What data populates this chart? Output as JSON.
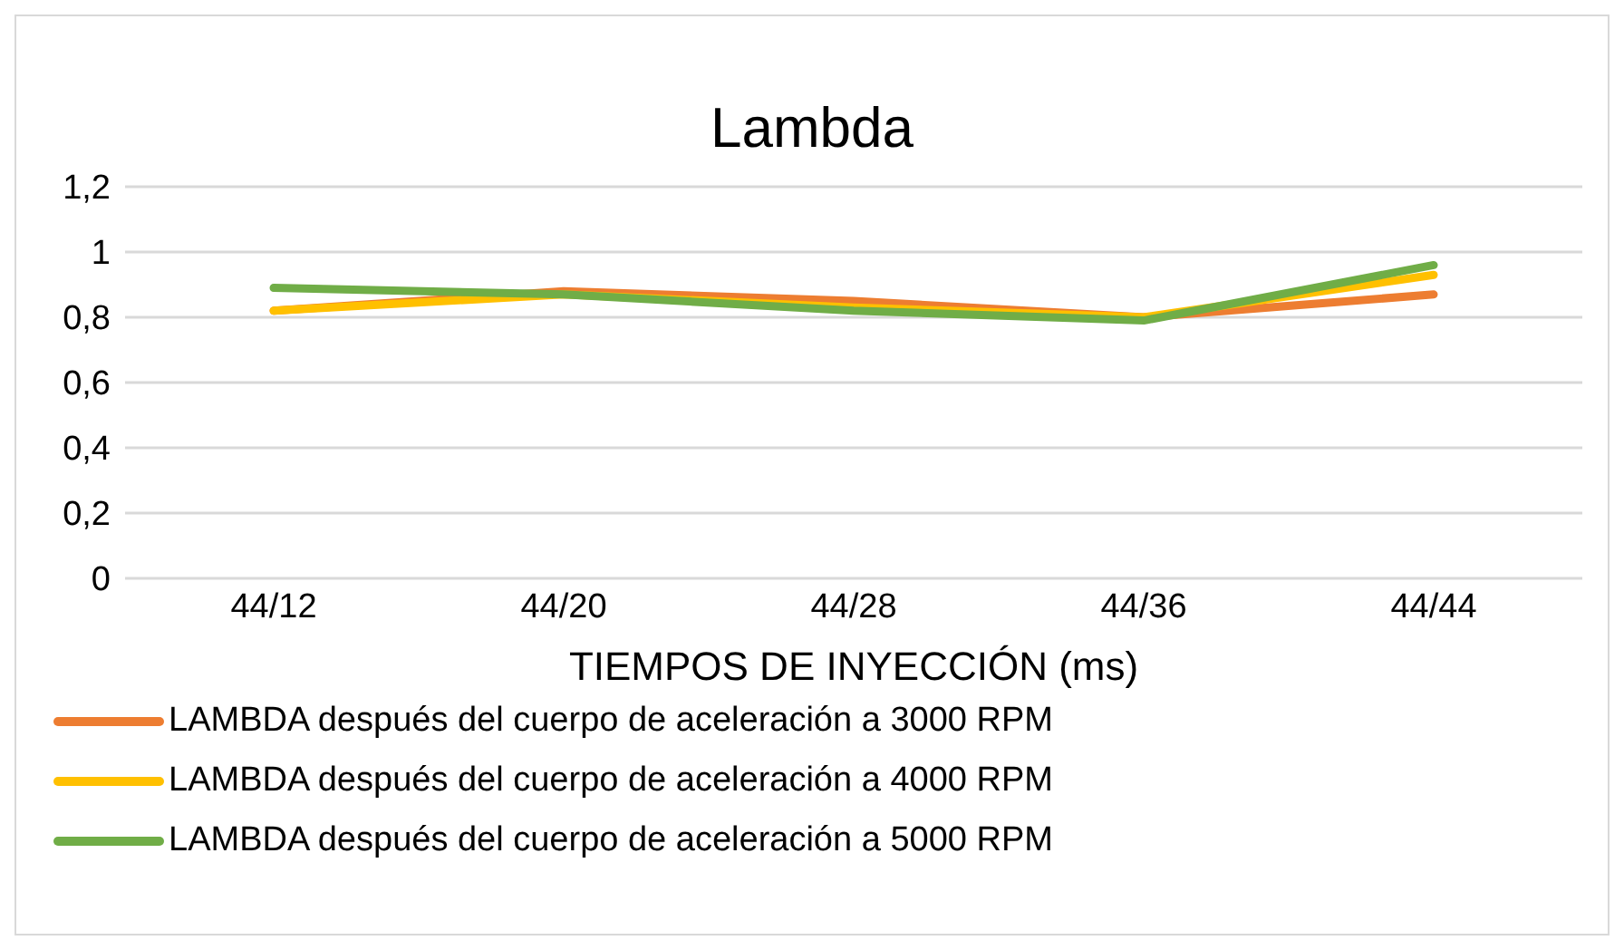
{
  "chart_data": {
    "type": "line",
    "title": "Lambda",
    "xlabel": "TIEMPOS DE INYECCIÓN (ms)",
    "categories": [
      "44/12",
      "44/20",
      "44/28",
      "44/36",
      "44/44"
    ],
    "series": [
      {
        "name": "LAMBDA después del cuerpo de aceleración a 3000 RPM",
        "color": "#ed7d31",
        "values": [
          0.82,
          0.88,
          0.85,
          0.8,
          0.87
        ]
      },
      {
        "name": "LAMBDA después del cuerpo de aceleración a 4000 RPM",
        "color": "#ffc000",
        "values": [
          0.82,
          0.87,
          0.83,
          0.8,
          0.93
        ]
      },
      {
        "name": "LAMBDA después del cuerpo de aceleración a 5000 RPM",
        "color": "#70ad47",
        "values": [
          0.89,
          0.87,
          0.82,
          0.79,
          0.96
        ]
      }
    ],
    "ylim": [
      0,
      1.2
    ],
    "yticks": [
      0,
      {
        "value": 0.2,
        "label": "0,2"
      },
      {
        "value": 0.4,
        "label": "0,4"
      },
      {
        "value": 0.6,
        "label": "0,6"
      },
      {
        "value": 0.8,
        "label": "0,8"
      },
      1,
      {
        "value": 1.2,
        "label": "1,2"
      }
    ],
    "grid": "y",
    "legend": "bottom",
    "marker": "none",
    "line_style": "solid"
  }
}
